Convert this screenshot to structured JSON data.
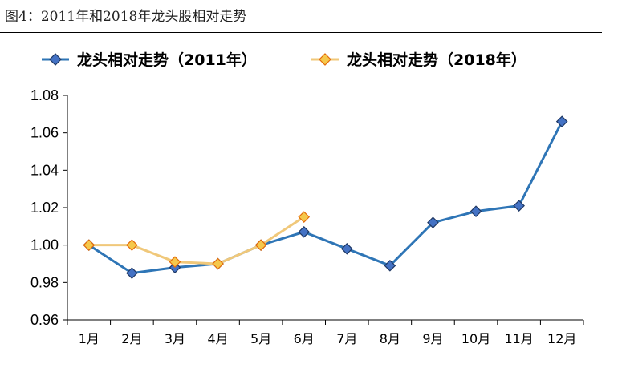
{
  "figure_title": "图4：2011年和2018年龙头股相对走势",
  "chart_data": {
    "type": "line",
    "categories": [
      "1月",
      "2月",
      "3月",
      "4月",
      "5月",
      "6月",
      "7月",
      "8月",
      "9月",
      "10月",
      "11月",
      "12月"
    ],
    "ylim": [
      0.96,
      1.08
    ],
    "yticks": [
      "0.96",
      "0.98",
      "1.00",
      "1.02",
      "1.04",
      "1.06",
      "1.08"
    ],
    "grid": false,
    "legend_position": "top",
    "series": [
      {
        "name": "龙头相对走势（2011年）",
        "color": "#2E75B6",
        "marker_fill": "#4472C4",
        "marker_stroke": "#1F3864",
        "values": [
          1.0,
          0.985,
          0.988,
          0.99,
          1.0,
          1.007,
          0.998,
          0.989,
          1.012,
          1.018,
          1.021,
          1.066
        ]
      },
      {
        "name": "龙头相对走势（2018年）",
        "color": "#F0C87A",
        "marker_fill": "#F5C84C",
        "marker_stroke": "#E46C0A",
        "values": [
          1.0,
          1.0,
          0.991,
          0.99,
          1.0,
          1.015,
          null,
          null,
          null,
          null,
          null,
          null
        ]
      }
    ]
  }
}
